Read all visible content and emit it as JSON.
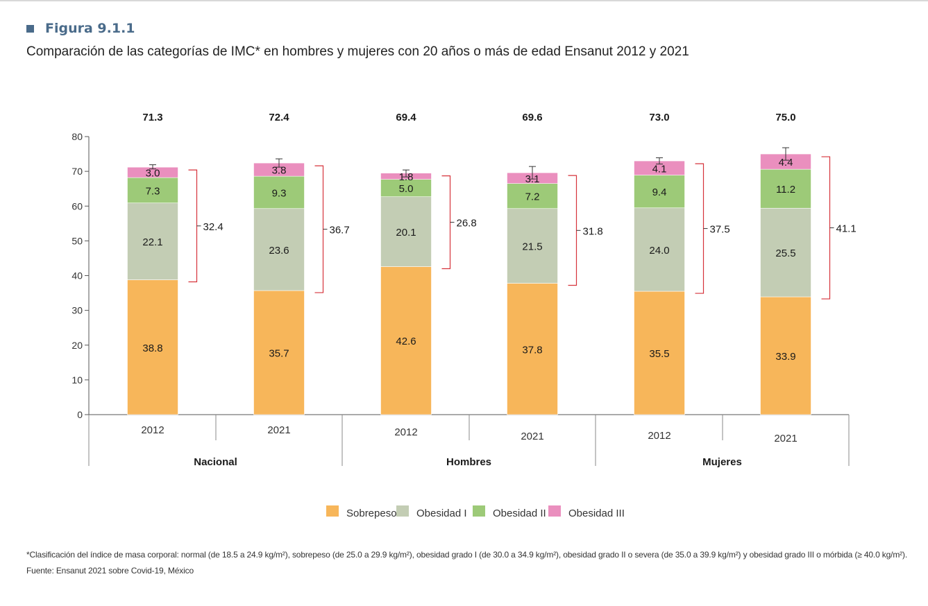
{
  "figure": {
    "label": "Figura 9.1.1",
    "title": "Comparación de las categorías de IMC* en hombres y mujeres con 20 años o más de edad Ensanut 2012 y 2021"
  },
  "footnote": {
    "line1": "*Clasificación del índice de masa corporal: normal (de 18.5 a 24.9 kg/m²), sobrepeso (de 25.0 a 29.9 kg/m²), obesidad grado I (de 30.0 a 34.9 kg/m²), obesidad grado II o severa (de 35.0 a 39.9 kg/m²) y obesidad grado III o mórbida (≥ 40.0 kg/m²).",
    "line2": "Fuente: Ensanut 2021 sobre Covid-19, México"
  },
  "colors": {
    "sobrepeso": "#f7b65a",
    "obesidad1": "#c3cdb4",
    "obesidad2": "#9dca78",
    "obesidad3": "#ea8fbe",
    "bracket": "#d6323a",
    "axis": "#555555"
  },
  "chart_data": {
    "type": "bar",
    "stacked": true,
    "ylim": [
      0,
      80
    ],
    "yticks": [
      "0",
      "10",
      "20",
      "30",
      "40",
      "50",
      "60",
      "70",
      "80"
    ],
    "groups": [
      "Nacional",
      "Hombres",
      "Mujeres"
    ],
    "categories": [
      "2012",
      "2021",
      "2012",
      "2021",
      "2012",
      "2021"
    ],
    "totals": [
      "71.3",
      "72.4",
      "69.4",
      "69.6",
      "73.0",
      "75.0"
    ],
    "series": [
      {
        "name": "Sobrepeso",
        "values": [
          38.8,
          35.7,
          42.6,
          37.8,
          35.5,
          33.9
        ],
        "labels": [
          "38.8",
          "35.7",
          "42.6",
          "37.8",
          "35.5",
          "33.9"
        ]
      },
      {
        "name": "Obesidad I",
        "values": [
          22.1,
          23.6,
          20.1,
          21.5,
          24.0,
          25.5
        ],
        "labels": [
          "22.1",
          "23.6",
          "20.1",
          "21.5",
          "24.0",
          "25.5"
        ]
      },
      {
        "name": "Obesidad II",
        "values": [
          7.3,
          9.3,
          5.0,
          7.2,
          9.4,
          11.2
        ],
        "labels": [
          "7.3",
          "9.3",
          "5.0",
          "7.2",
          "9.4",
          "11.2"
        ]
      },
      {
        "name": "Obesidad III",
        "values": [
          3.0,
          3.8,
          1.8,
          3.1,
          4.1,
          4.4
        ],
        "labels": [
          "3.0",
          "3.8",
          "1.8",
          "3.1",
          "4.1",
          "4.4"
        ]
      }
    ],
    "error_upper": [
      71.9,
      73.6,
      70.4,
      71.4,
      73.9,
      76.8
    ],
    "error_lower": [
      70.7,
      71.2,
      68.4,
      67.8,
      72.1,
      73.2
    ],
    "obesity_totals": [
      "32.4",
      "36.7",
      "26.8",
      "31.8",
      "37.5",
      "41.1"
    ],
    "legend": [
      "Sobrepeso",
      "Obesidad I",
      "Obesidad II",
      "Obesidad III"
    ],
    "legend_position": "bottom-center",
    "grid": false
  }
}
